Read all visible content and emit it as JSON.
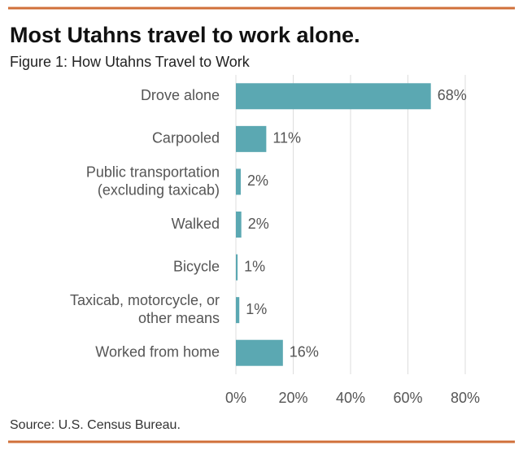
{
  "chart_data": {
    "type": "bar",
    "orientation": "horizontal",
    "title": "Most Utahns travel to work alone.",
    "subtitle": "Figure 1: How Utahns Travel to Work",
    "source": "Source: U.S. Census Bureau.",
    "categories": [
      "Drove alone",
      "Carpooled",
      "Public transportation\n(excluding taxicab)",
      "Walked",
      "Bicycle",
      "Taxicab, motorcycle, or\nother means",
      "Worked from home"
    ],
    "values": [
      68,
      10.6,
      1.7,
      1.9,
      0.6,
      1.2,
      16.4
    ],
    "value_labels": [
      "68%",
      "11%",
      "2%",
      "2%",
      "1%",
      "1%",
      "16%"
    ],
    "color": "#5ba8b2",
    "xlim": [
      0,
      80
    ],
    "xticks": [
      {
        "value": 0,
        "label": "0%"
      },
      {
        "value": 20,
        "label": "20%"
      },
      {
        "value": 40,
        "label": "40%"
      },
      {
        "value": 60,
        "label": "60%"
      },
      {
        "value": 80,
        "label": "80%"
      }
    ],
    "grid": true
  }
}
